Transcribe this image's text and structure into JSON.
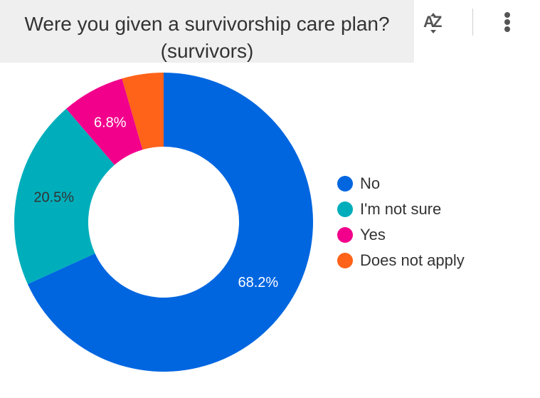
{
  "header": {
    "title_line1": "Were you given a survivorship care plan?",
    "title_line2": "(survivors)",
    "sort_icon": "sort-az-icon",
    "menu_icon": "more-vertical-icon"
  },
  "chart_data": {
    "type": "pie",
    "donut": true,
    "categories": [
      "No",
      "I'm not sure",
      "Yes",
      "Does not apply"
    ],
    "values": [
      68.2,
      20.5,
      6.8,
      4.5
    ],
    "labels": [
      "68.2%",
      "20.5%",
      "6.8%",
      ""
    ],
    "colors": [
      "#0066e0",
      "#00aebb",
      "#f2008c",
      "#ff6219"
    ],
    "label_colors": [
      "#ffffff",
      "#333333",
      "#ffffff",
      "#ffffff"
    ],
    "legend_position": "right"
  }
}
